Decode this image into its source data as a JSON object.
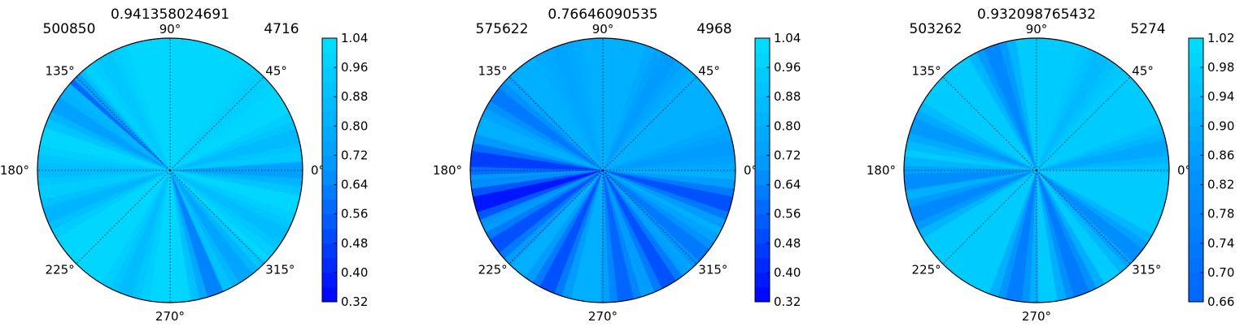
{
  "chart_data": [
    {
      "type": "polar-contour",
      "title": "0.941358024691",
      "left_label": "500850",
      "right_label": "4716",
      "angle_ticks": [
        "0°",
        "45°",
        "90°",
        "135°",
        "180°",
        "225°",
        "270°",
        "315°"
      ],
      "colorbar": {
        "ticks": [
          "0.32",
          "0.40",
          "0.48",
          "0.56",
          "0.64",
          "0.72",
          "0.80",
          "0.88",
          "0.96",
          "1.04"
        ],
        "range": [
          0.32,
          1.04
        ]
      },
      "colors": {
        "high": "#00e0ff",
        "mid": "#0096ff",
        "low": "#0000ff"
      },
      "streaks": [
        {
          "angle": 140,
          "value": 0.55
        },
        {
          "angle": 150,
          "value": 0.72
        },
        {
          "angle": 180,
          "value": 0.86
        },
        {
          "angle": 200,
          "value": 0.82
        },
        {
          "angle": 250,
          "value": 0.86
        },
        {
          "angle": 290,
          "value": 0.62
        },
        {
          "angle": 305,
          "value": 0.74
        },
        {
          "angle": 330,
          "value": 0.86
        },
        {
          "angle": 0,
          "value": 0.72
        },
        {
          "angle": 15,
          "value": 0.85
        },
        {
          "angle": 45,
          "value": 0.95
        },
        {
          "angle": 120,
          "value": 0.92
        }
      ],
      "base_value": 0.99
    },
    {
      "type": "polar-contour",
      "title": "0.76646090535",
      "left_label": "575622",
      "right_label": "4968",
      "angle_ticks": [
        "0°",
        "45°",
        "90°",
        "135°",
        "180°",
        "225°",
        "270°",
        "315°"
      ],
      "colorbar": {
        "ticks": [
          "0.32",
          "0.40",
          "0.48",
          "0.56",
          "0.64",
          "0.72",
          "0.80",
          "0.88",
          "0.96",
          "1.04"
        ],
        "range": [
          0.32,
          1.04
        ]
      },
      "colors": {
        "high": "#00e0ff",
        "mid": "#0096ff",
        "low": "#0000ff"
      },
      "streaks": [
        {
          "angle": 60,
          "value": 0.7
        },
        {
          "angle": 110,
          "value": 0.75
        },
        {
          "angle": 145,
          "value": 0.6
        },
        {
          "angle": 175,
          "value": 0.45
        },
        {
          "angle": 195,
          "value": 0.35
        },
        {
          "angle": 215,
          "value": 0.5
        },
        {
          "angle": 245,
          "value": 0.5
        },
        {
          "angle": 280,
          "value": 0.55
        },
        {
          "angle": 300,
          "value": 0.5
        },
        {
          "angle": 320,
          "value": 0.6
        },
        {
          "angle": 345,
          "value": 0.5
        },
        {
          "angle": 10,
          "value": 0.7
        }
      ],
      "base_value": 0.8
    },
    {
      "type": "polar-contour",
      "title": "0.932098765432",
      "left_label": "503262",
      "right_label": "5274",
      "angle_ticks": [
        "0°",
        "45°",
        "90°",
        "135°",
        "180°",
        "225°",
        "270°",
        "315°"
      ],
      "colorbar": {
        "ticks": [
          "0.66",
          "0.70",
          "0.74",
          "0.78",
          "0.82",
          "0.86",
          "0.90",
          "0.94",
          "0.98",
          "1.02"
        ],
        "range": [
          0.66,
          1.02
        ]
      },
      "colors": {
        "high": "#00e0ff",
        "mid": "#0096ff",
        "low": "#0064ff"
      },
      "streaks": [
        {
          "angle": 110,
          "value": 0.78
        },
        {
          "angle": 160,
          "value": 0.84
        },
        {
          "angle": 185,
          "value": 0.8
        },
        {
          "angle": 200,
          "value": 0.78
        },
        {
          "angle": 260,
          "value": 0.74
        },
        {
          "angle": 290,
          "value": 0.72
        },
        {
          "angle": 320,
          "value": 0.8
        },
        {
          "angle": 10,
          "value": 0.88
        },
        {
          "angle": 60,
          "value": 0.92
        }
      ],
      "base_value": 0.97
    }
  ]
}
